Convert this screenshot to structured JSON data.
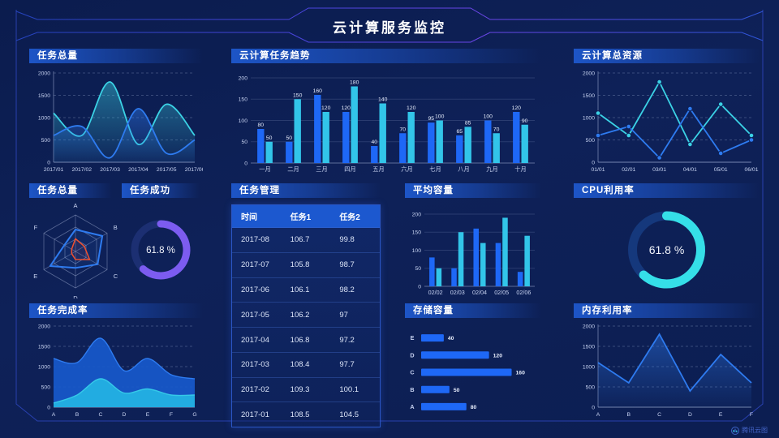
{
  "header": {
    "title": "云计算服务监控"
  },
  "watermark": {
    "label": "腾讯云图"
  },
  "panels": {
    "task_total_line": "任务总量",
    "cloud_task_trend": "云计算任务趋势",
    "cloud_total_resource": "云计算总资源",
    "task_total_radar": "任务总量",
    "task_success": "任务成功",
    "task_manage": "任务管理",
    "avg_capacity": "平均容量",
    "cpu_usage": "CPU利用率",
    "task_complete_rate": "任务完成率",
    "storage_capacity": "存储容量",
    "memory_usage": "内存利用率"
  },
  "table": {
    "headers": [
      "时间",
      "任务1",
      "任务2"
    ],
    "rows": [
      [
        "2017-08",
        "106.7",
        "99.8"
      ],
      [
        "2017-07",
        "105.8",
        "98.7"
      ],
      [
        "2017-06",
        "106.1",
        "98.2"
      ],
      [
        "2017-05",
        "106.2",
        "97"
      ],
      [
        "2017-04",
        "106.8",
        "97.2"
      ],
      [
        "2017-03",
        "108.4",
        "97.7"
      ],
      [
        "2017-02",
        "109.3",
        "100.1"
      ],
      [
        "2017-01",
        "108.5",
        "104.5"
      ]
    ]
  },
  "chart_data": [
    {
      "mount": "task_total_line",
      "type": "area",
      "title": "任务总量",
      "x": [
        "2017/01",
        "2017/02",
        "2017/03",
        "2017/04",
        "2017/05",
        "2017/06"
      ],
      "series": [
        {
          "name": "cyan",
          "color": "#3BD2E5",
          "values": [
            1100,
            600,
            1800,
            400,
            1300,
            600
          ]
        },
        {
          "name": "blue",
          "color": "#2E7BF0",
          "values": [
            600,
            800,
            100,
            1200,
            200,
            500
          ]
        }
      ],
      "ylim": [
        0,
        2000
      ],
      "yticks": [
        0,
        500,
        1000,
        1500,
        2000
      ],
      "smooth": true,
      "area": true,
      "dash": true
    },
    {
      "mount": "cloud_task_trend",
      "type": "bar",
      "title": "云计算任务趋势",
      "categories": [
        "一月",
        "二月",
        "三月",
        "四月",
        "五月",
        "六月",
        "七月",
        "八月",
        "九月",
        "十月"
      ],
      "series": [
        {
          "name": "blue",
          "color": "#1E68F6",
          "values": [
            80,
            50,
            160,
            120,
            40,
            70,
            95,
            65,
            100,
            120
          ]
        },
        {
          "name": "cyan",
          "color": "#32C5E9",
          "values": [
            50,
            150,
            120,
            180,
            140,
            120,
            100,
            85,
            70,
            90
          ]
        }
      ],
      "ylim": [
        0,
        200
      ],
      "yticks": [
        0,
        50,
        100,
        150,
        200
      ],
      "bar_labels": true
    },
    {
      "mount": "cloud_total_resource",
      "type": "area",
      "title": "云计算总资源",
      "x": [
        "01/01",
        "02/01",
        "03/01",
        "04/01",
        "05/01",
        "06/01"
      ],
      "series": [
        {
          "name": "cyan",
          "color": "#3BD2E5",
          "values": [
            1100,
            600,
            1800,
            400,
            1300,
            600
          ]
        },
        {
          "name": "blue",
          "color": "#2E7BF0",
          "values": [
            600,
            800,
            100,
            1200,
            200,
            500
          ]
        }
      ],
      "ylim": [
        0,
        2000
      ],
      "yticks": [
        0,
        500,
        1000,
        1500,
        2000
      ],
      "smooth": false,
      "markers": true,
      "area": false,
      "dash": true
    },
    {
      "mount": "task_total_radar",
      "type": "radar",
      "title": "任务总量",
      "axes": [
        "A",
        "B",
        "C",
        "D",
        "E",
        "F"
      ],
      "max": 100,
      "series": [
        {
          "name": "blue",
          "color": "#2E7BF0",
          "values": [
            60,
            85,
            70,
            45,
            80,
            35
          ]
        },
        {
          "name": "red",
          "color": "#F0502F",
          "values": [
            35,
            28,
            45,
            22,
            12,
            12
          ]
        }
      ]
    },
    {
      "mount": "task_success_gauge",
      "type": "gauge",
      "title": "任务成功",
      "percent": 61.8,
      "label": "61.8 %",
      "color": "#7C5CF0",
      "track": "#1C2F72",
      "r": 32,
      "sw": 9,
      "fs": 11.5
    },
    {
      "mount": "avg_capacity",
      "type": "bar",
      "title": "平均容量",
      "categories": [
        "02/02",
        "02/03",
        "02/04",
        "02/05",
        "02/06"
      ],
      "series": [
        {
          "name": "blue",
          "color": "#1E68F6",
          "values": [
            80,
            50,
            160,
            120,
            40
          ]
        },
        {
          "name": "cyan",
          "color": "#32C5E9",
          "values": [
            50,
            150,
            120,
            190,
            140
          ]
        }
      ],
      "ylim": [
        0,
        200
      ],
      "yticks": [
        0,
        50,
        100,
        150,
        200
      ],
      "bar_labels": false
    },
    {
      "mount": "cpu_usage_gauge",
      "type": "gauge",
      "title": "CPU利用率",
      "percent": 61.8,
      "label": "61.8 %",
      "color": "#35DFE8",
      "track": "#15387C",
      "r": 42,
      "sw": 11,
      "fs": 14
    },
    {
      "mount": "task_complete_rate",
      "type": "stacked-area",
      "title": "任务完成率",
      "x": [
        "A",
        "B",
        "C",
        "D",
        "E",
        "F",
        "G"
      ],
      "series": [
        {
          "name": "blue",
          "color": "#1757C8",
          "line": "#2E7BF0",
          "values": [
            1200,
            1100,
            1700,
            900,
            1200,
            800,
            700
          ]
        },
        {
          "name": "cyan",
          "color": "#23B1E3",
          "line": "#35C9E8",
          "values": [
            100,
            300,
            700,
            350,
            450,
            300,
            300
          ]
        }
      ],
      "ylim": [
        0,
        2000
      ],
      "yticks": [
        0,
        500,
        1000,
        1500,
        2000
      ],
      "smooth": true,
      "dash": true
    },
    {
      "mount": "storage_capacity",
      "type": "hbar",
      "title": "存储容量",
      "categories": [
        "E",
        "D",
        "C",
        "B",
        "A"
      ],
      "values": [
        40,
        120,
        160,
        50,
        80
      ],
      "xmax": 175,
      "color": "#1E68F6"
    },
    {
      "mount": "memory_usage",
      "type": "area",
      "title": "内存利用率",
      "x": [
        "A",
        "B",
        "C",
        "D",
        "E",
        "F"
      ],
      "series": [
        {
          "name": "blue",
          "color": "#2E7BF0",
          "values": [
            1100,
            600,
            1800,
            400,
            1300,
            600
          ]
        }
      ],
      "ylim": [
        0,
        2000
      ],
      "yticks": [
        0,
        500,
        1000,
        1500,
        2000
      ],
      "smooth": false,
      "area": true,
      "dash": true
    }
  ]
}
